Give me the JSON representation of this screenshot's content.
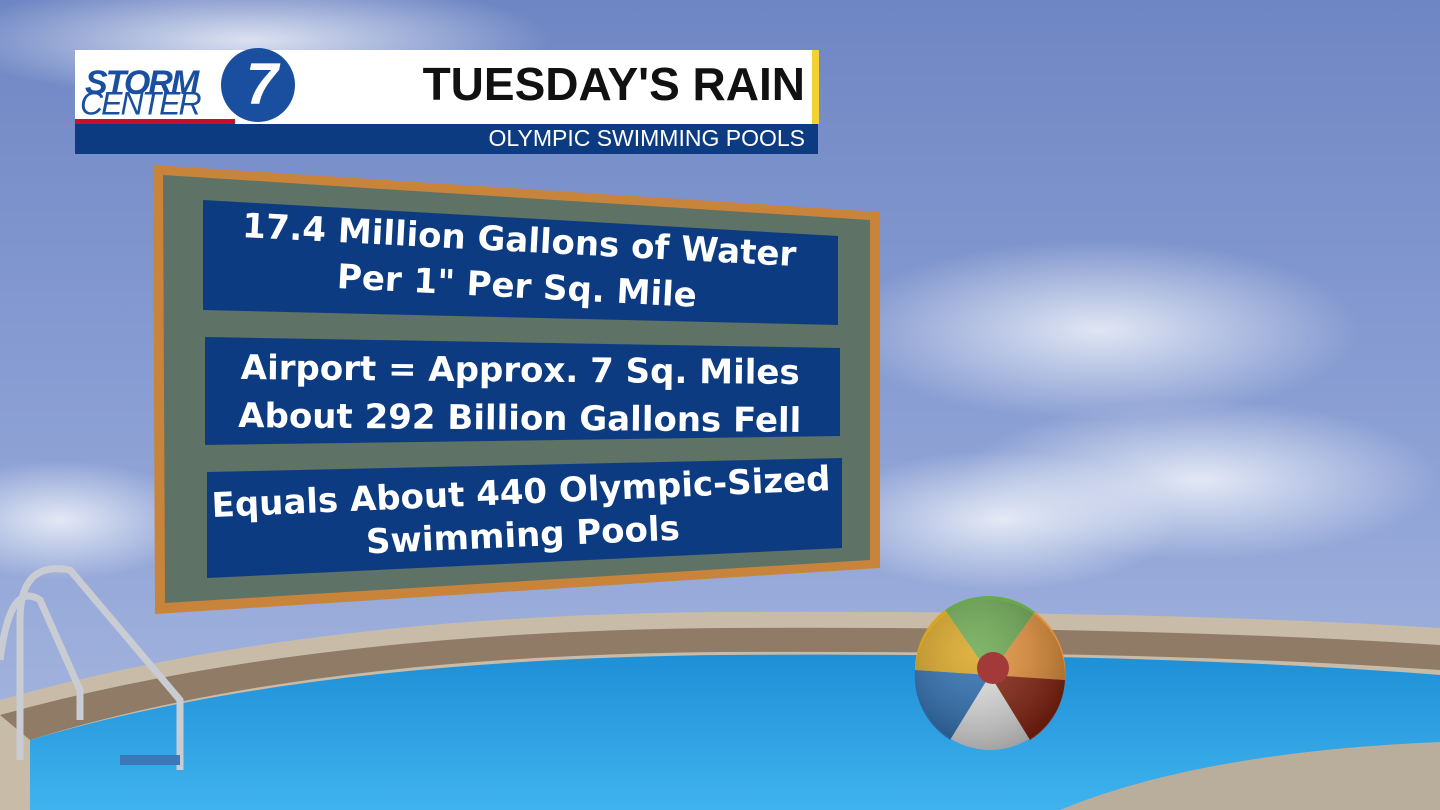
{
  "header": {
    "logo_top": "STORM",
    "logo_bottom": "CENTER",
    "logo_number": "7",
    "title": "TUESDAY'S RAIN",
    "subtitle": "OLYMPIC SWIMMING POOLS"
  },
  "board": {
    "panels": [
      {
        "lines": [
          "17.4 Million Gallons of Water",
          "Per 1\" Per Sq. Mile"
        ]
      },
      {
        "lines": [
          "Airport = Approx. 7 Sq. Miles",
          "About 292 Billion Gallons Fell"
        ]
      },
      {
        "lines": [
          "Equals About 440 Olympic-Sized",
          "Swimming Pools"
        ]
      }
    ]
  }
}
